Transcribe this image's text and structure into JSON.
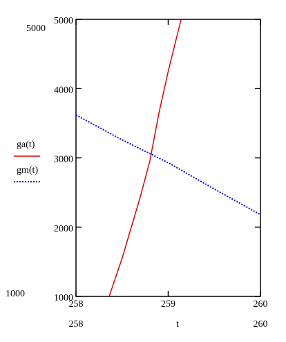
{
  "chart_data": {
    "type": "line",
    "xlabel": "t",
    "xlim": [
      258,
      260
    ],
    "xticks": [
      258,
      259,
      260
    ],
    "ylim": [
      1000,
      5000
    ],
    "yticks": [
      1000,
      2000,
      3000,
      4000,
      5000
    ],
    "legend": "left",
    "series": [
      {
        "name": "ga(t)",
        "color": "#e00000",
        "style": "solid",
        "x": [
          258.36,
          258.5,
          258.6,
          258.7,
          258.8,
          258.9,
          259,
          259.14
        ],
        "values": [
          1000,
          1550,
          2000,
          2450,
          2950,
          3650,
          4250,
          5000
        ]
      },
      {
        "name": "gm(t)",
        "color": "#0000e0",
        "style": "dotted",
        "x": [
          258,
          258.5,
          259,
          259.5,
          260
        ],
        "values": [
          3620,
          3260,
          2930,
          2550,
          2180
        ]
      }
    ]
  }
}
